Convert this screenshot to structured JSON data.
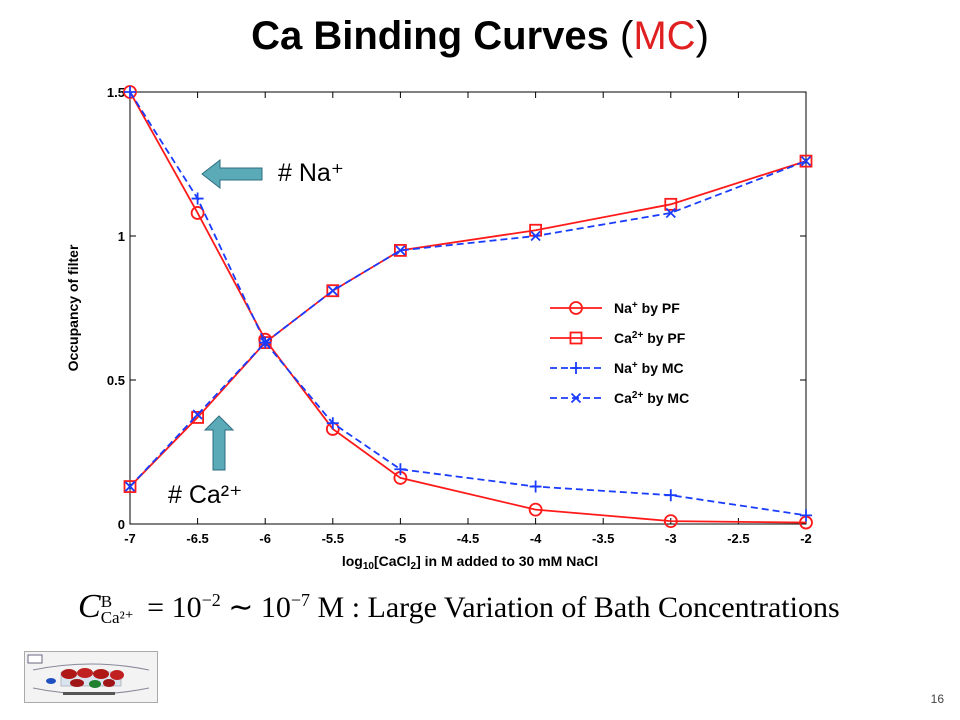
{
  "slide": {
    "title_main": "Ca Binding Curves",
    "title_paren_open": " (",
    "title_accent": "MC",
    "title_paren_close": ")",
    "page_number": "16",
    "accent_color": "#e02020"
  },
  "annotations": {
    "na_label": "# Na⁺",
    "ca_label": "# Ca²⁺",
    "arrow_color": "#5aaab8"
  },
  "formula": {
    "symbol": "C",
    "superscript": "B",
    "subscript": "Ca²⁺",
    "text_1": " = 10",
    "exp_1": "−2",
    "text_2": " ∼ 10",
    "exp_2": "−7",
    "text_3": " M : Large Variation of Bath Concentrations"
  },
  "chart_data": {
    "type": "line",
    "xlabel": "log10[CaCl2] in M added to 30 mM NaCl",
    "xlabel_parts": [
      "log",
      "10",
      "[CaCl",
      "2",
      "] in M added to 30 mM NaCl"
    ],
    "ylabel": "Occupancy of filter",
    "xlim": [
      -7,
      -2
    ],
    "ylim": [
      0,
      1.5
    ],
    "x": [
      -7,
      -6.5,
      -6,
      -5.5,
      -5,
      -4,
      -3,
      -2
    ],
    "xticks": [
      -7,
      -6.5,
      -6,
      -5.5,
      -5,
      -4.5,
      -4,
      -3.5,
      -3,
      -2.5,
      -2
    ],
    "xtick_labels": [
      "-7",
      "-6.5",
      "-6",
      "-5.5",
      "-5",
      "-4.5",
      "-4",
      "-3.5",
      "-3",
      "-2.5",
      "-2"
    ],
    "yticks": [
      0,
      0.5,
      1,
      1.5
    ],
    "ytick_labels": [
      "0",
      "0.5",
      "1",
      "1.5"
    ],
    "grid": false,
    "legend_position": "right",
    "series": [
      {
        "name": "Na⁺ by PF",
        "label_main": "Na",
        "label_sup": "+",
        "label_rest": " by PF",
        "color": "#ff1a1a",
        "dash": "solid",
        "marker": "circle",
        "values": [
          1.5,
          1.08,
          0.64,
          0.33,
          0.16,
          0.05,
          0.01,
          0.005
        ]
      },
      {
        "name": "Ca²⁺ by PF",
        "label_main": "Ca",
        "label_sup": "2+",
        "label_rest": " by PF",
        "color": "#ff1a1a",
        "dash": "solid",
        "marker": "square",
        "values": [
          0.13,
          0.37,
          0.63,
          0.81,
          0.95,
          1.02,
          1.11,
          1.26
        ]
      },
      {
        "name": "Na⁺ by MC",
        "label_main": "Na",
        "label_sup": "+",
        "label_rest": " by MC",
        "color": "#1a3cff",
        "dash": "dashed",
        "marker": "plus",
        "values": [
          1.5,
          1.13,
          0.63,
          0.35,
          0.19,
          0.13,
          0.1,
          0.03
        ]
      },
      {
        "name": "Ca²⁺ by MC",
        "label_main": "Ca",
        "label_sup": "2+",
        "label_rest": " by MC",
        "color": "#1a3cff",
        "dash": "dashed",
        "marker": "x",
        "values": [
          0.13,
          0.38,
          0.63,
          0.81,
          0.95,
          1.0,
          1.08,
          1.26
        ]
      }
    ]
  }
}
